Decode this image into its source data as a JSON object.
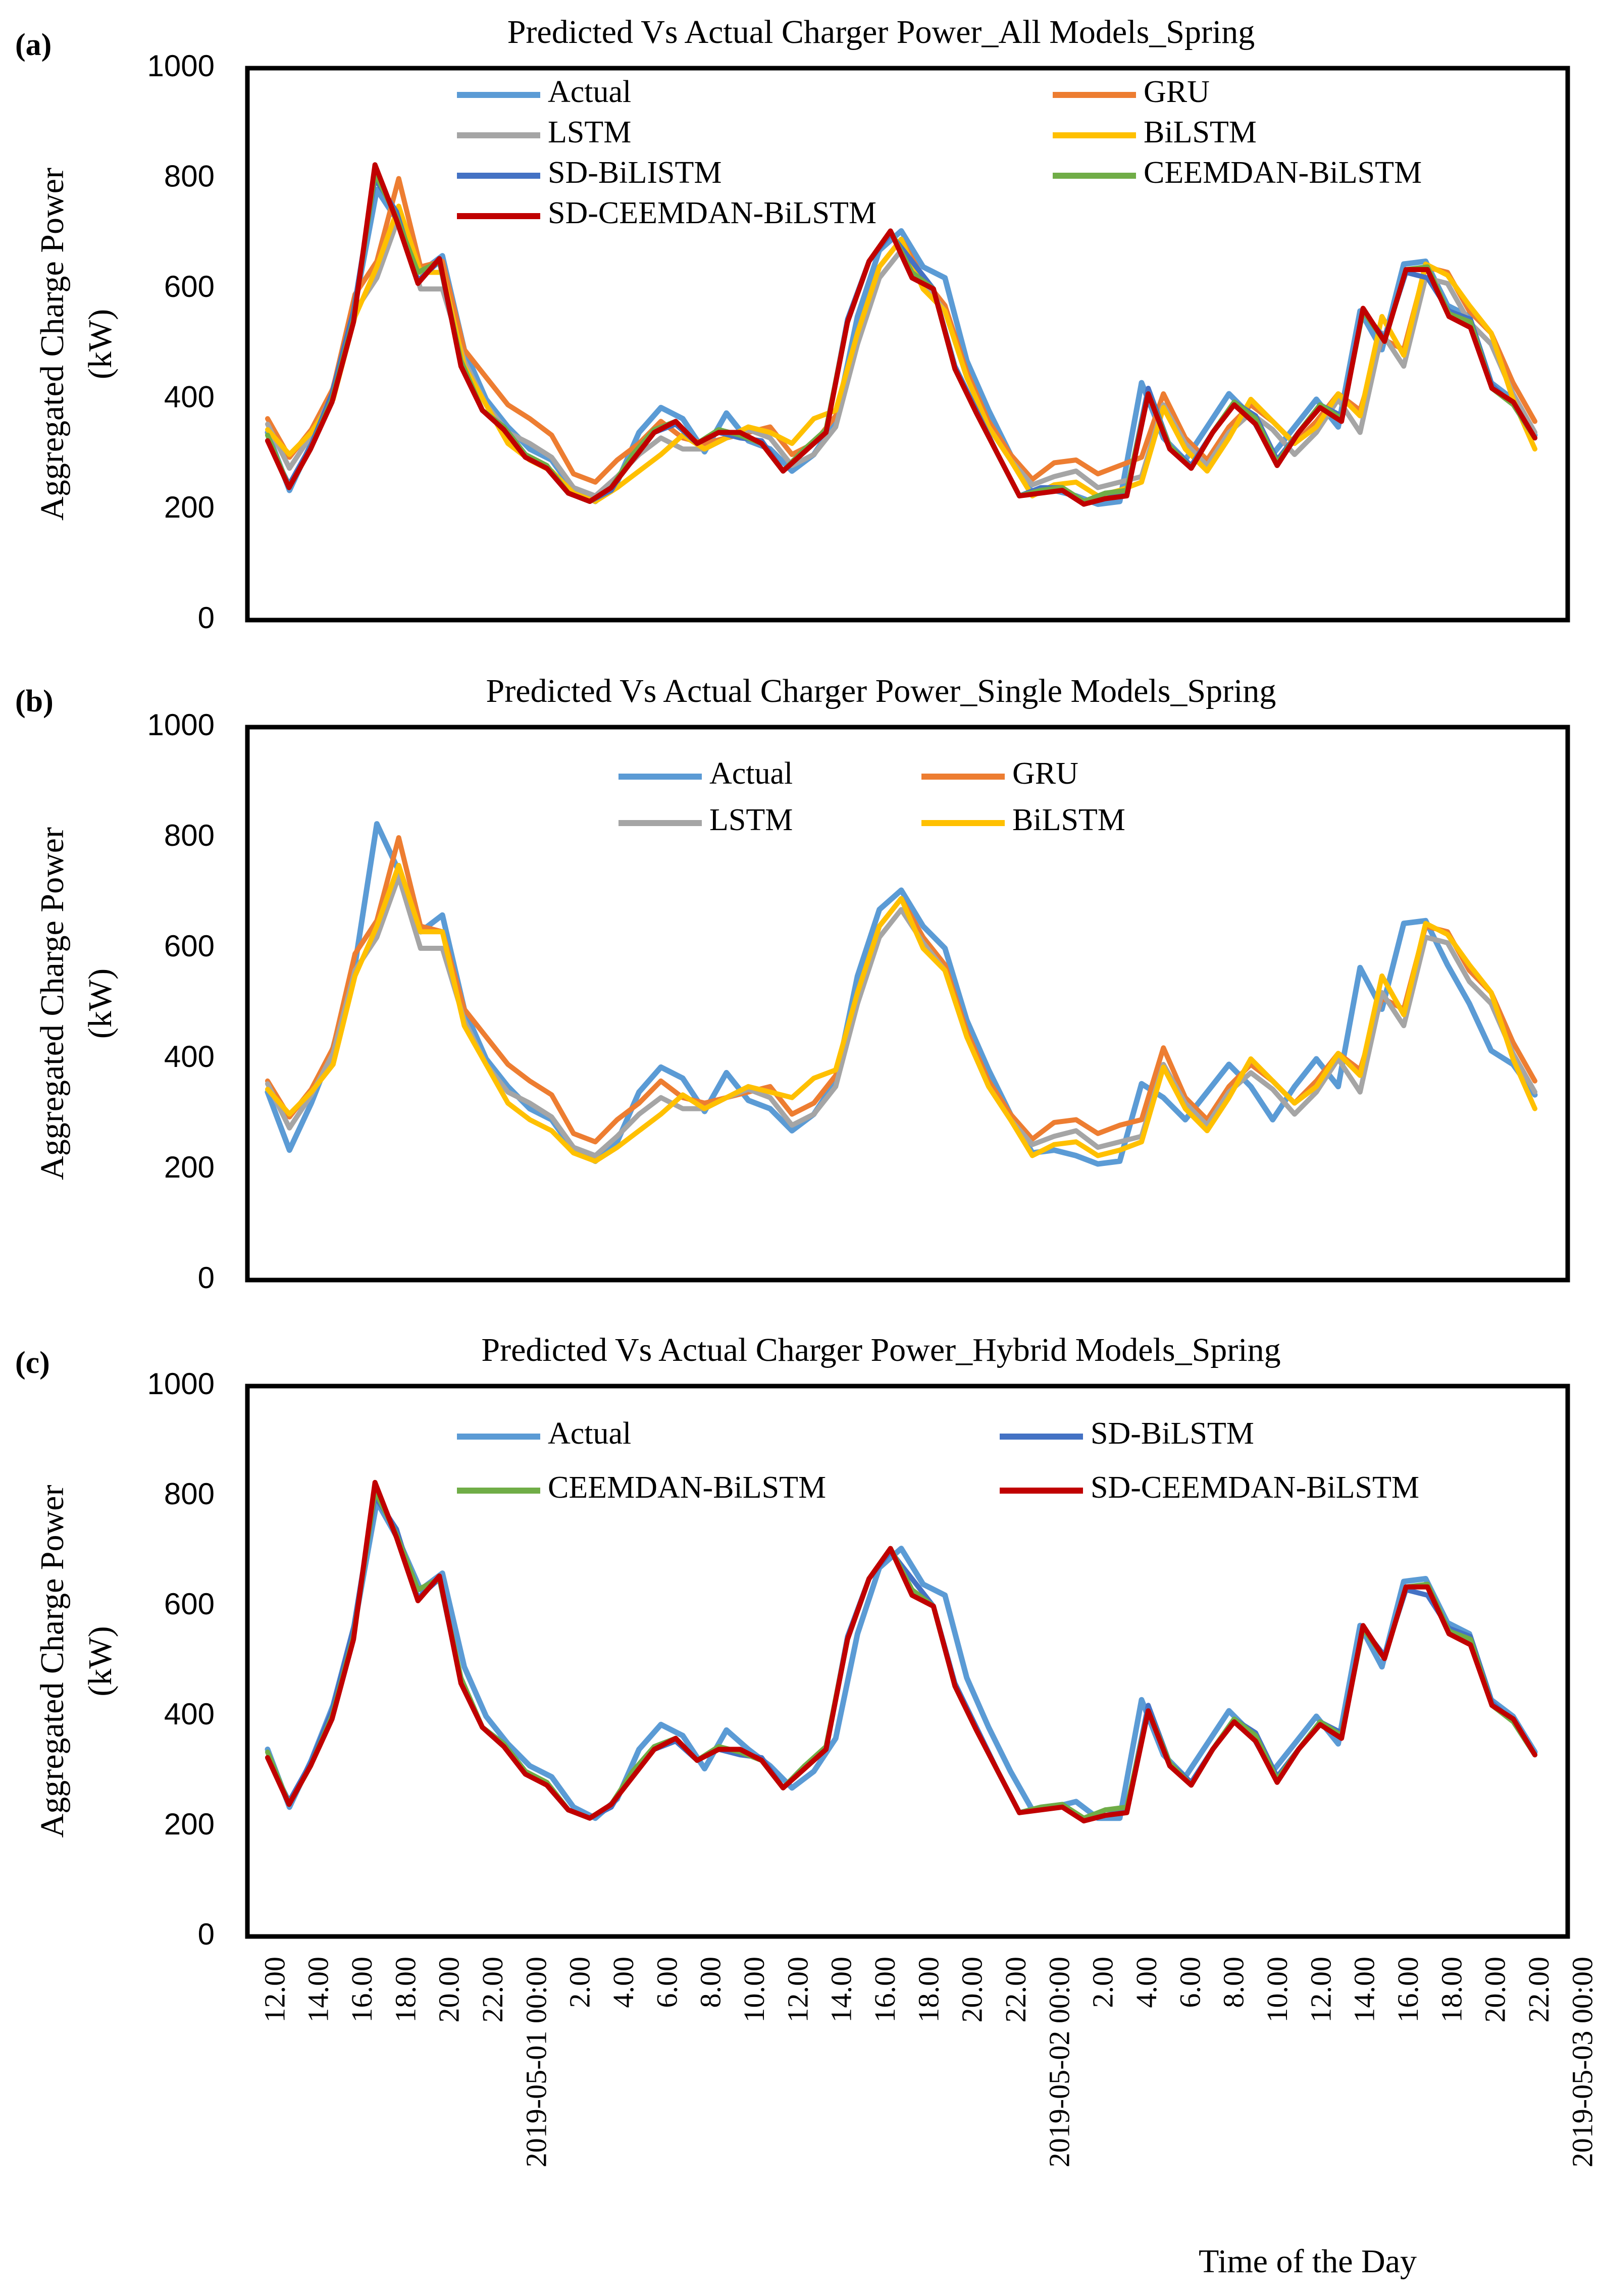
{
  "figure": {
    "x_axis_title": "Time of the Day",
    "x_tick_labels": [
      "12.00",
      "14.00",
      "16.00",
      "18.00",
      "20.00",
      "22.00",
      "2019-05-01 00:00",
      "2.00",
      "4.00",
      "6.00",
      "8.00",
      "10.00",
      "12.00",
      "14.00",
      "16.00",
      "18.00",
      "20.00",
      "22.00",
      "2019-05-02 00:00",
      "2.00",
      "4.00",
      "6.00",
      "8.00",
      "10.00",
      "12.00",
      "14.00",
      "16.00",
      "18.00",
      "20.00",
      "22.00",
      "2019-05-03 00:00"
    ]
  },
  "series_styles": {
    "Actual": {
      "color": "#5B9BD5"
    },
    "GRU": {
      "color": "#ED7D31"
    },
    "LSTM": {
      "color": "#A5A5A5"
    },
    "BiLSTM": {
      "color": "#FFC000"
    },
    "SD-BiLSTM": {
      "color": "#4472C4"
    },
    "CEEMDAN-BiLSTM": {
      "color": "#70AD47"
    },
    "SD-CEEMDAN-BiLSTM": {
      "color": "#C00000"
    }
  },
  "chart_data": [
    {
      "type": "line",
      "panel_label": "(a)",
      "title": "Predicted Vs Actual Charger  Power_All Models_Spring",
      "xlabel": "Time of the Day",
      "ylabel": "Aggregated Charge Power (kW)",
      "ylim": [
        0,
        1000
      ],
      "yticks": [
        0,
        200,
        400,
        600,
        800,
        1000
      ],
      "legend": [
        "Actual",
        "GRU",
        "LSTM",
        "BiLSTM",
        "SD-BiLISTM",
        "CEEMDAN-BiLSTM",
        "SD-CEEMDAN-BiLSTM"
      ],
      "series": [
        {
          "name": "Actual",
          "values": [
            340,
            235,
            320,
            420,
            570,
            780,
            720,
            630,
            660,
            490,
            400,
            350,
            310,
            290,
            235,
            215,
            250,
            340,
            385,
            365,
            305,
            375,
            325,
            310,
            270,
            300,
            360,
            550,
            670,
            705,
            640,
            620,
            470,
            380,
            300,
            230,
            235,
            225,
            210,
            215,
            430,
            330,
            290,
            350,
            410,
            370,
            300,
            350,
            400,
            350,
            560,
            490,
            645,
            650,
            570,
            550,
            430,
            400,
            335
          ]
        },
        {
          "name": "GRU",
          "values": [
            365,
            295,
            345,
            420,
            590,
            650,
            800,
            640,
            650,
            490,
            440,
            390,
            365,
            335,
            265,
            250,
            290,
            320,
            360,
            330,
            320,
            330,
            340,
            350,
            300,
            320,
            370,
            520,
            640,
            690,
            620,
            570,
            450,
            360,
            300,
            255,
            285,
            290,
            265,
            280,
            295,
            410,
            330,
            290,
            350,
            390,
            360,
            320,
            360,
            410,
            380,
            510,
            490,
            640,
            630,
            560,
            520,
            430,
            360
          ]
        },
        {
          "name": "LSTM",
          "values": [
            355,
            275,
            335,
            410,
            560,
            620,
            730,
            600,
            600,
            470,
            390,
            340,
            320,
            295,
            240,
            225,
            260,
            300,
            330,
            310,
            310,
            330,
            345,
            330,
            280,
            300,
            350,
            500,
            620,
            670,
            610,
            560,
            440,
            350,
            290,
            245,
            260,
            270,
            240,
            250,
            260,
            390,
            320,
            280,
            340,
            375,
            345,
            300,
            340,
            400,
            340,
            520,
            460,
            620,
            610,
            540,
            500,
            410,
            340
          ]
        },
        {
          "name": "BiLSTM",
          "values": [
            345,
            300,
            340,
            400,
            550,
            640,
            750,
            630,
            630,
            460,
            390,
            320,
            290,
            270,
            230,
            215,
            240,
            270,
            300,
            335,
            310,
            330,
            350,
            340,
            320,
            365,
            380,
            520,
            640,
            690,
            600,
            560,
            440,
            350,
            290,
            225,
            245,
            250,
            225,
            235,
            250,
            385,
            310,
            270,
            330,
            400,
            360,
            320,
            350,
            410,
            370,
            550,
            480,
            645,
            625,
            570,
            520,
            400,
            310
          ]
        },
        {
          "name": "SD-BiLISTM",
          "values": [
            325,
            245,
            315,
            410,
            560,
            800,
            740,
            615,
            650,
            465,
            380,
            350,
            300,
            275,
            230,
            215,
            235,
            300,
            340,
            355,
            320,
            340,
            330,
            325,
            270,
            310,
            340,
            545,
            650,
            700,
            650,
            600,
            460,
            380,
            300,
            225,
            240,
            240,
            210,
            230,
            230,
            420,
            315,
            280,
            340,
            395,
            370,
            290,
            340,
            390,
            370,
            560,
            510,
            630,
            620,
            560,
            545,
            425,
            390,
            330
          ]
        },
        {
          "name": "CEEMDAN-BiLSTM",
          "values": [
            335,
            240,
            310,
            400,
            545,
            810,
            730,
            630,
            650,
            470,
            380,
            350,
            300,
            280,
            230,
            215,
            240,
            300,
            345,
            360,
            320,
            345,
            335,
            320,
            270,
            310,
            345,
            540,
            650,
            705,
            630,
            600,
            455,
            375,
            300,
            225,
            235,
            240,
            215,
            230,
            235,
            410,
            315,
            275,
            340,
            395,
            365,
            285,
            340,
            390,
            365,
            560,
            505,
            635,
            640,
            555,
            540,
            420,
            390,
            330
          ]
        },
        {
          "name": "SD-CEEMDAN-BiLSTM",
          "values": [
            325,
            240,
            310,
            395,
            540,
            825,
            725,
            610,
            655,
            460,
            380,
            345,
            295,
            275,
            230,
            215,
            240,
            290,
            340,
            360,
            320,
            340,
            340,
            320,
            270,
            305,
            340,
            540,
            650,
            705,
            620,
            600,
            455,
            375,
            300,
            225,
            230,
            235,
            210,
            220,
            225,
            410,
            310,
            275,
            340,
            390,
            355,
            280,
            340,
            385,
            360,
            565,
            505,
            635,
            635,
            550,
            530,
            420,
            395,
            330
          ]
        }
      ]
    },
    {
      "type": "line",
      "panel_label": "(b)",
      "title": "Predicted Vs Actual Charger  Power_Single Models_Spring",
      "xlabel": "Time of the Day",
      "ylabel": "Aggregated Charge Power (kW)",
      "ylim": [
        0,
        1000
      ],
      "yticks": [
        0,
        200,
        400,
        600,
        800,
        1000
      ],
      "legend": [
        "Actual",
        "GRU",
        "LSTM",
        "BiLSTM"
      ],
      "series": [
        {
          "name": "Actual",
          "values": [
            340,
            235,
            320,
            420,
            570,
            825,
            740,
            630,
            660,
            490,
            400,
            350,
            310,
            290,
            235,
            215,
            250,
            340,
            385,
            365,
            305,
            375,
            325,
            310,
            270,
            300,
            360,
            550,
            670,
            705,
            640,
            600,
            470,
            380,
            300,
            230,
            235,
            225,
            210,
            215,
            355,
            330,
            290,
            340,
            390,
            350,
            290,
            350,
            400,
            350,
            565,
            490,
            645,
            650,
            570,
            500,
            415,
            390,
            335
          ]
        },
        {
          "name": "GRU",
          "values": [
            360,
            295,
            345,
            420,
            590,
            650,
            800,
            640,
            630,
            490,
            440,
            390,
            360,
            335,
            265,
            250,
            290,
            320,
            360,
            330,
            320,
            330,
            340,
            350,
            300,
            320,
            370,
            520,
            640,
            690,
            620,
            570,
            450,
            360,
            300,
            255,
            285,
            290,
            265,
            280,
            290,
            420,
            330,
            290,
            350,
            390,
            360,
            320,
            360,
            410,
            380,
            510,
            490,
            640,
            630,
            560,
            520,
            430,
            360
          ]
        },
        {
          "name": "LSTM",
          "values": [
            355,
            275,
            335,
            410,
            560,
            620,
            730,
            600,
            600,
            470,
            390,
            340,
            320,
            295,
            240,
            225,
            260,
            300,
            330,
            310,
            310,
            330,
            345,
            330,
            280,
            300,
            350,
            500,
            620,
            670,
            610,
            560,
            440,
            350,
            290,
            245,
            260,
            270,
            240,
            250,
            260,
            390,
            320,
            280,
            340,
            375,
            345,
            300,
            340,
            400,
            340,
            520,
            460,
            620,
            610,
            540,
            500,
            410,
            340
          ]
        },
        {
          "name": "BiLSTM",
          "values": [
            345,
            300,
            340,
            390,
            550,
            640,
            750,
            630,
            630,
            460,
            390,
            320,
            290,
            270,
            230,
            215,
            240,
            270,
            300,
            335,
            310,
            330,
            350,
            340,
            330,
            365,
            380,
            520,
            640,
            690,
            600,
            560,
            440,
            350,
            290,
            225,
            245,
            250,
            225,
            235,
            250,
            385,
            310,
            270,
            330,
            400,
            360,
            320,
            350,
            410,
            370,
            550,
            480,
            645,
            625,
            570,
            520,
            400,
            310
          ]
        }
      ]
    },
    {
      "type": "line",
      "panel_label": "(c)",
      "title": "Predicted Vs Actual Charger  Power_Hybrid Models_Spring",
      "xlabel": "Time of the Day",
      "ylabel": "Aggregated Charge Power (kW)",
      "ylim": [
        0,
        1000
      ],
      "yticks": [
        0,
        200,
        400,
        600,
        800,
        1000
      ],
      "legend": [
        "Actual",
        "SD-BiLSTM",
        "CEEMDAN-BiLSTM",
        "SD-CEEMDAN-BiLSTM"
      ],
      "series": [
        {
          "name": "Actual",
          "values": [
            340,
            235,
            320,
            420,
            570,
            790,
            720,
            630,
            660,
            490,
            400,
            350,
            310,
            290,
            235,
            215,
            250,
            340,
            385,
            365,
            305,
            375,
            340,
            310,
            270,
            300,
            360,
            550,
            670,
            705,
            640,
            620,
            470,
            380,
            300,
            230,
            235,
            245,
            215,
            215,
            430,
            330,
            290,
            350,
            410,
            370,
            300,
            350,
            400,
            350,
            565,
            490,
            645,
            650,
            570,
            550,
            430,
            400,
            335
          ]
        },
        {
          "name": "SD-BiLSTM",
          "values": [
            325,
            245,
            315,
            410,
            560,
            800,
            740,
            615,
            650,
            465,
            380,
            350,
            300,
            275,
            230,
            215,
            235,
            300,
            340,
            355,
            320,
            340,
            330,
            325,
            270,
            310,
            340,
            545,
            650,
            700,
            650,
            600,
            460,
            380,
            300,
            225,
            235,
            240,
            210,
            230,
            230,
            420,
            315,
            280,
            340,
            395,
            370,
            290,
            340,
            390,
            370,
            560,
            510,
            630,
            620,
            560,
            545,
            425,
            390,
            330
          ]
        },
        {
          "name": "CEEMDAN-BiLSTM",
          "values": [
            335,
            240,
            310,
            400,
            545,
            810,
            730,
            630,
            650,
            470,
            380,
            350,
            300,
            280,
            230,
            215,
            240,
            300,
            345,
            360,
            320,
            345,
            335,
            320,
            270,
            310,
            345,
            540,
            650,
            705,
            630,
            600,
            455,
            375,
            300,
            225,
            235,
            240,
            215,
            230,
            235,
            410,
            315,
            275,
            340,
            395,
            365,
            285,
            340,
            390,
            365,
            560,
            505,
            635,
            640,
            555,
            540,
            420,
            390,
            330
          ]
        },
        {
          "name": "SD-CEEMDAN-BiLSTM",
          "values": [
            325,
            240,
            310,
            395,
            540,
            825,
            725,
            610,
            655,
            460,
            380,
            345,
            295,
            275,
            230,
            215,
            240,
            290,
            340,
            360,
            320,
            340,
            340,
            320,
            270,
            305,
            340,
            540,
            650,
            705,
            620,
            600,
            455,
            375,
            300,
            225,
            230,
            235,
            210,
            220,
            225,
            410,
            310,
            275,
            340,
            390,
            355,
            280,
            340,
            385,
            360,
            565,
            505,
            635,
            635,
            550,
            530,
            420,
            395,
            330
          ]
        }
      ]
    }
  ]
}
